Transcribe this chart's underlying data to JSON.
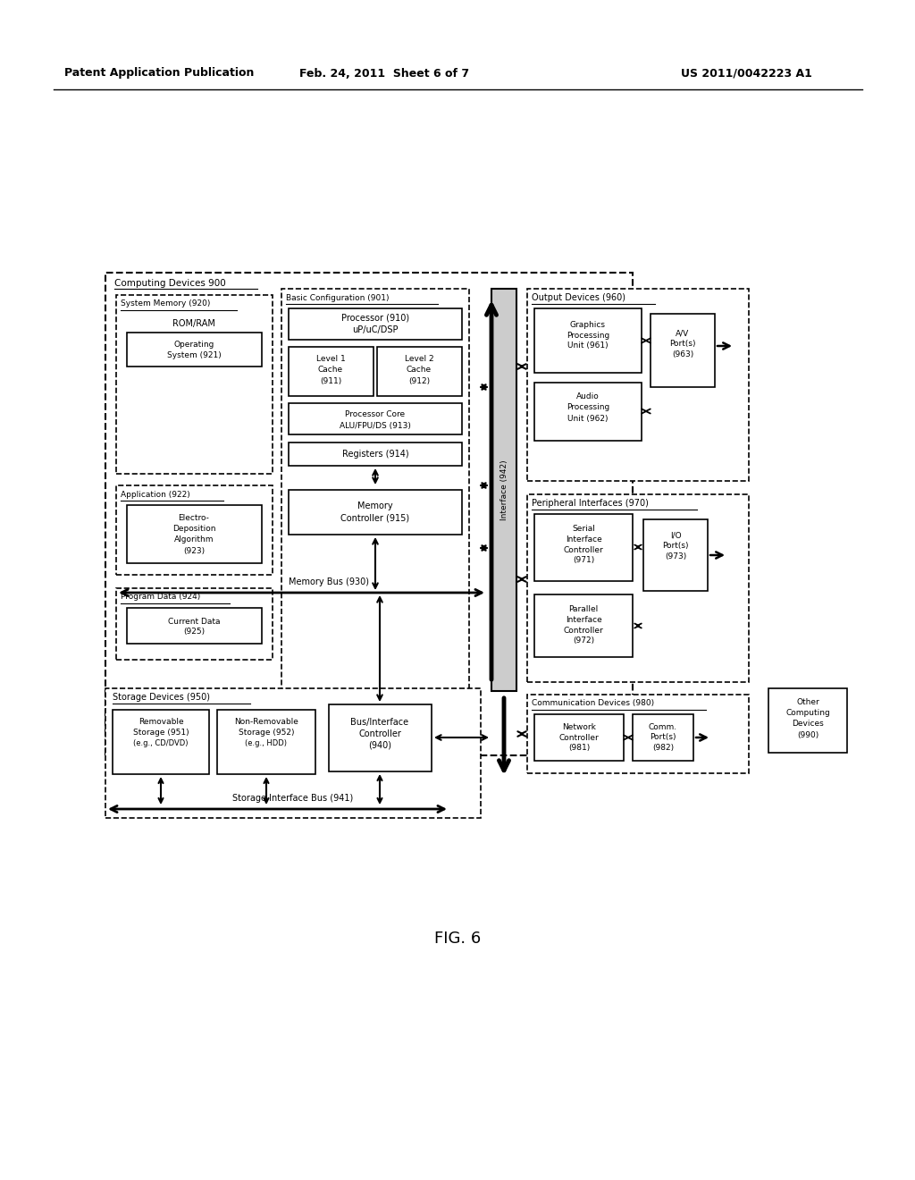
{
  "header_left": "Patent Application Publication",
  "header_mid": "Feb. 24, 2011  Sheet 6 of 7",
  "header_right": "US 2011/0042223 A1",
  "fig_label": "FIG. 6",
  "bg_color": "#ffffff"
}
